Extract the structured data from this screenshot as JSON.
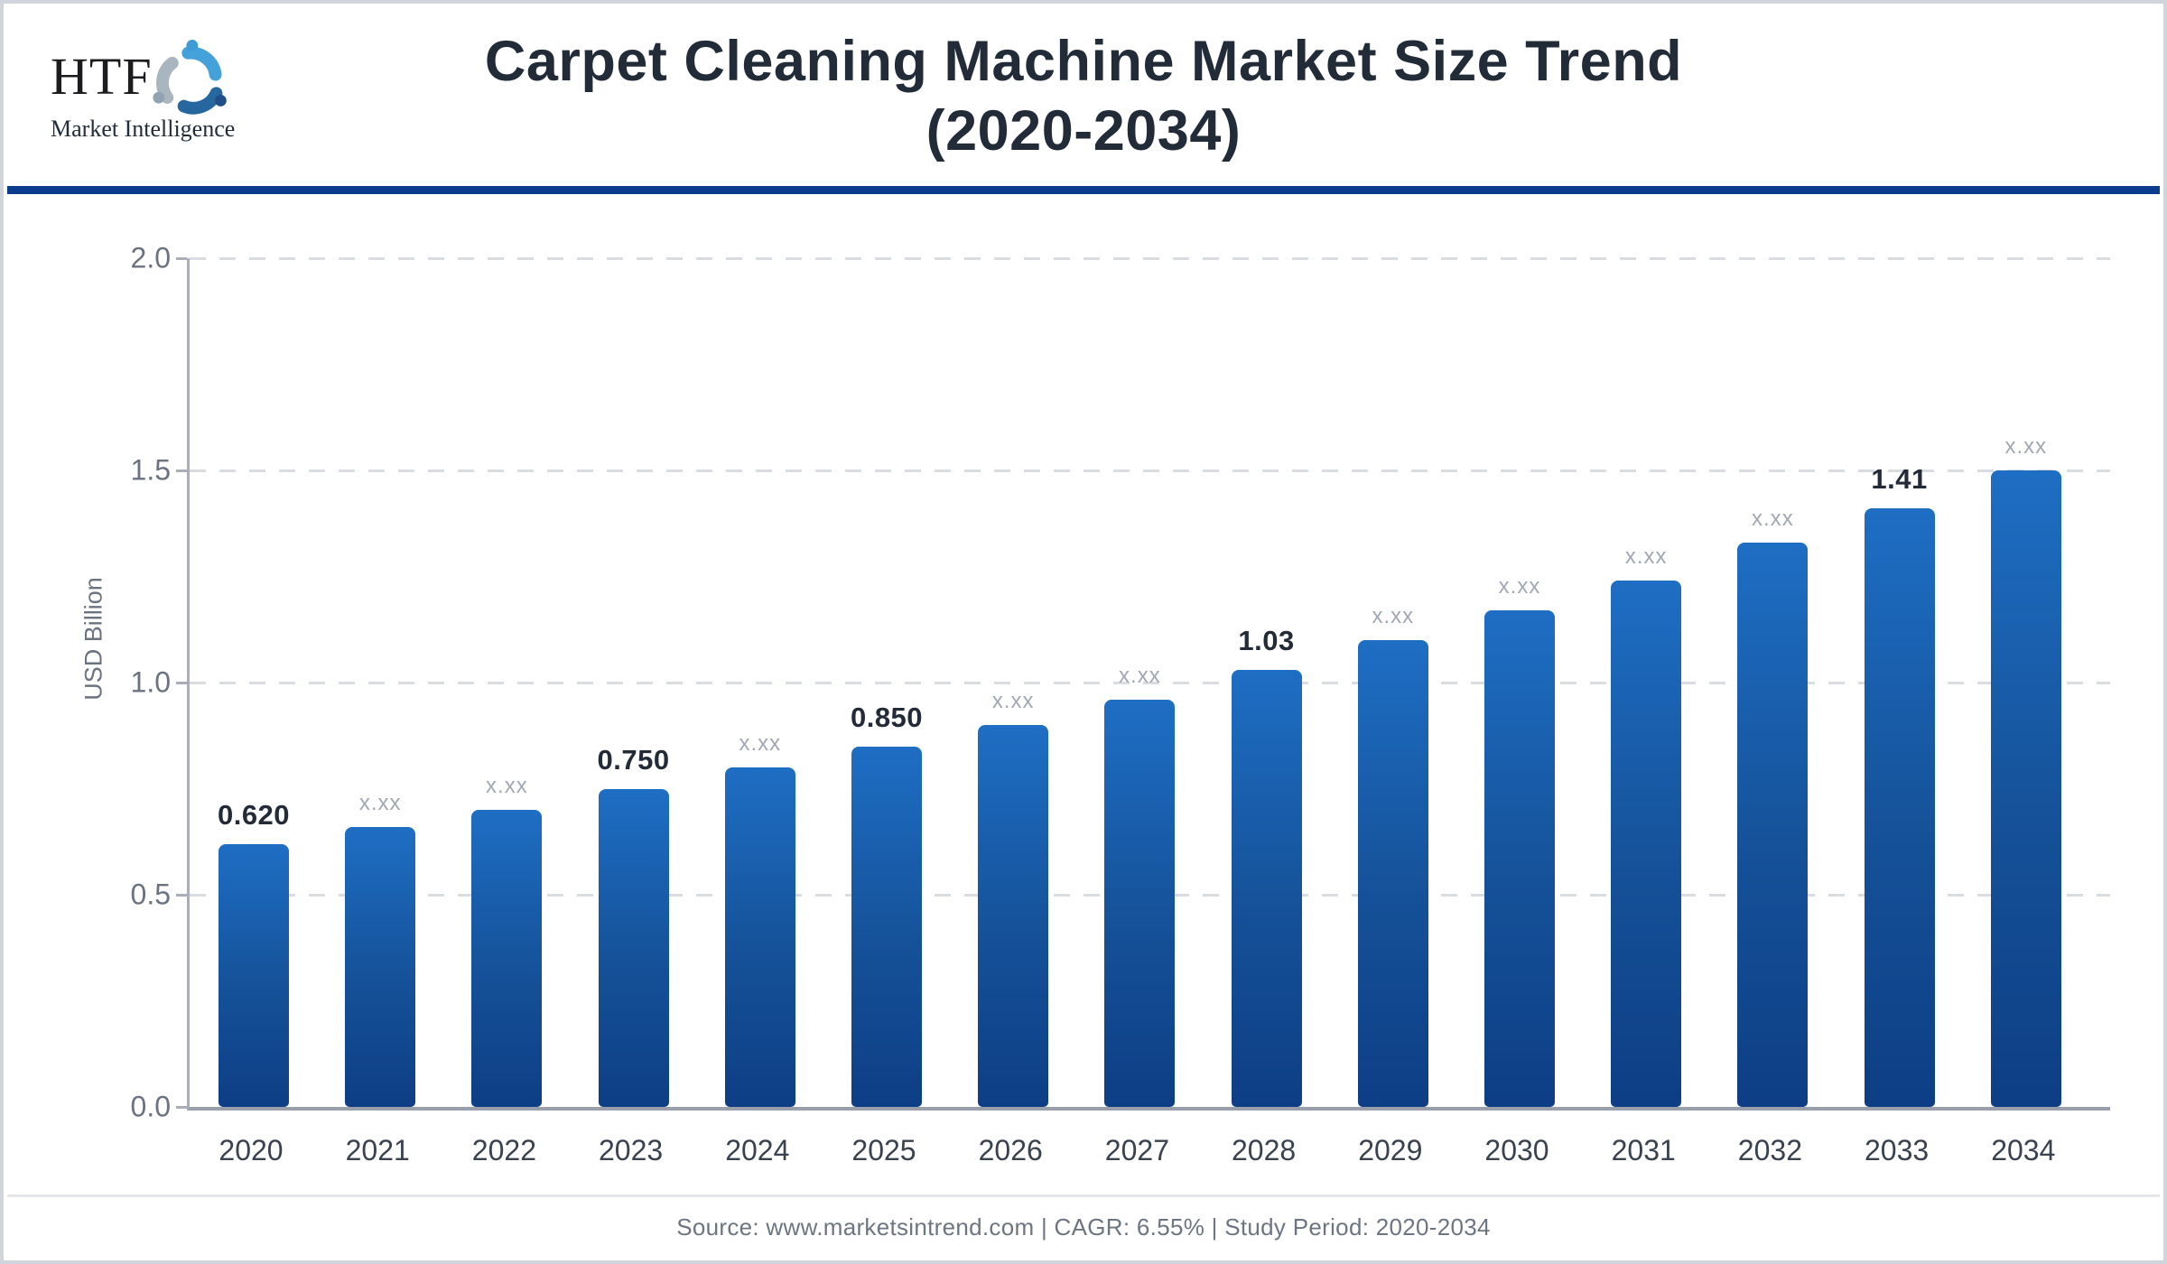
{
  "header": {
    "logo_acronym": "HTF",
    "logo_subtitle": "Market Intelligence",
    "title_line1": "Carpet Cleaning Machine Market Size Trend",
    "title_line2": "(2020-2034)",
    "rule_color": "#0c3c8e"
  },
  "chart_data": {
    "type": "bar",
    "title": "Carpet Cleaning Machine Market Size Trend (2020-2034)",
    "categories": [
      "2020",
      "2021",
      "2022",
      "2023",
      "2024",
      "2025",
      "2026",
      "2027",
      "2028",
      "2029",
      "2030",
      "2031",
      "2032",
      "2033",
      "2034"
    ],
    "values": [
      0.62,
      0.66,
      0.7,
      0.75,
      0.8,
      0.85,
      0.9,
      0.96,
      1.03,
      1.1,
      1.17,
      1.24,
      1.33,
      1.41,
      1.5
    ],
    "bar_labels": [
      "0.620",
      "x.xx",
      "x.xx",
      "0.750",
      "x.xx",
      "0.850",
      "x.xx",
      "x.xx",
      "1.03",
      "x.xx",
      "x.xx",
      "x.xx",
      "x.xx",
      "1.41",
      "x.xx"
    ],
    "bar_label_emphasis": [
      true,
      false,
      false,
      true,
      false,
      true,
      false,
      false,
      true,
      false,
      false,
      false,
      false,
      true,
      false
    ],
    "xlabel": "",
    "ylabel": "USD Billion",
    "ylim": [
      0.0,
      2.0
    ],
    "yticks": [
      0.0,
      0.5,
      1.0,
      1.5,
      2.0
    ],
    "ytick_labels": [
      "0.0",
      "0.5",
      "1.0",
      "1.5",
      "2.0"
    ],
    "grid": true,
    "legend": false,
    "bar_color_top": "#1e6ec4",
    "bar_color_bottom": "#0d3e85"
  },
  "logo_colors": {
    "swirl_light_blue": "#45a1d9",
    "swirl_gray": "#a9b5bf",
    "swirl_dark_blue": "#27679f",
    "head_light_blue": "#3d9bd6",
    "head_gray": "#8fa3b2",
    "head_dark_blue": "#1f4f86"
  },
  "footer": {
    "text": "Source: www.marketsintrend.com  |  CAGR: 6.55%  |  Study Period: 2020-2034"
  }
}
